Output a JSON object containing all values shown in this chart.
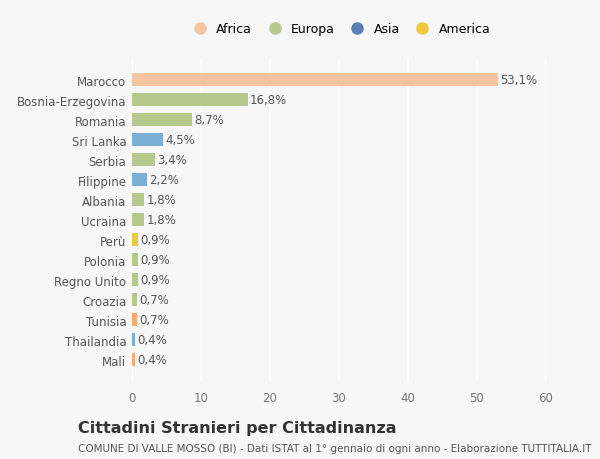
{
  "categories": [
    "Mali",
    "Thailandia",
    "Tunisia",
    "Croazia",
    "Regno Unito",
    "Polonia",
    "Perù",
    "Ucraina",
    "Albania",
    "Filippine",
    "Serbia",
    "Sri Lanka",
    "Romania",
    "Bosnia-Erzegovina",
    "Marocco"
  ],
  "values": [
    0.4,
    0.4,
    0.7,
    0.7,
    0.9,
    0.9,
    0.9,
    1.8,
    1.8,
    2.2,
    3.4,
    4.5,
    8.7,
    16.8,
    53.1
  ],
  "labels": [
    "0,4%",
    "0,4%",
    "0,7%",
    "0,7%",
    "0,9%",
    "0,9%",
    "0,9%",
    "1,8%",
    "1,8%",
    "2,2%",
    "3,4%",
    "4,5%",
    "8,7%",
    "16,8%",
    "53,1%"
  ],
  "colors": [
    "#f5a96e",
    "#7bafd4",
    "#f5a96e",
    "#b5c98a",
    "#b5c98a",
    "#b5c98a",
    "#f0c840",
    "#b5c98a",
    "#b5c98a",
    "#7bafd4",
    "#b5c98a",
    "#7bafd4",
    "#b5c98a",
    "#b5c98a",
    "#f5c4a0"
  ],
  "continent": [
    "Africa",
    "Asia",
    "Africa",
    "Europa",
    "Europa",
    "Europa",
    "America",
    "Europa",
    "Europa",
    "Asia",
    "Europa",
    "Asia",
    "Europa",
    "Europa",
    "Africa"
  ],
  "legend_labels": [
    "Africa",
    "Europa",
    "Asia",
    "America"
  ],
  "legend_colors": [
    "#f5c4a0",
    "#b5c98a",
    "#5b7fb5",
    "#f0c840"
  ],
  "title": "Cittadini Stranieri per Cittadinanza",
  "subtitle": "COMUNE DI VALLE MOSSO (BI) - Dati ISTAT al 1° gennaio di ogni anno - Elaborazione TUTTITALIA.IT",
  "xlim": [
    0,
    60
  ],
  "xticks": [
    0,
    10,
    20,
    30,
    40,
    50,
    60
  ],
  "bg_color": "#f7f7f7",
  "bar_height": 0.65,
  "label_fontsize": 8.5,
  "title_fontsize": 11.5,
  "subtitle_fontsize": 7.5,
  "tick_fontsize": 8.5,
  "legend_fontsize": 9
}
